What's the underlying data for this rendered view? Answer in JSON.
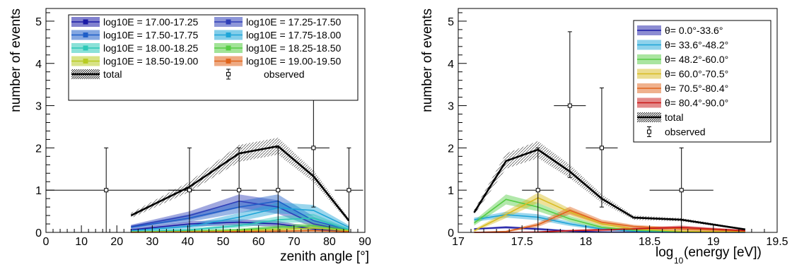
{
  "chart_data": [
    {
      "type": "line",
      "xlabel": "zenith angle [°]",
      "ylabel": "number of events",
      "xlim": [
        0,
        90
      ],
      "ylim": [
        0,
        5.3
      ],
      "xticks": [
        0,
        10,
        20,
        30,
        40,
        50,
        60,
        70,
        80,
        90
      ],
      "yticks": [
        0,
        1,
        2,
        3,
        4,
        5
      ],
      "grid": false,
      "legend_position": "top",
      "x": [
        24,
        40.5,
        54.5,
        65.5,
        75.5,
        85.5
      ],
      "series": [
        {
          "name": "log10E = 17.00-17.25",
          "color": "#1a1aa6",
          "values": [
            0.06,
            0.2,
            0.24,
            0.2,
            0.08,
            0.02
          ],
          "band": [
            0.03,
            0.06,
            0.07,
            0.07,
            0.04,
            0.02
          ]
        },
        {
          "name": "log10E = 17.25-17.50",
          "color": "#2f3fb8",
          "values": [
            0.14,
            0.4,
            0.74,
            0.6,
            0.2,
            0.04
          ],
          "band": [
            0.04,
            0.1,
            0.16,
            0.16,
            0.08,
            0.02
          ]
        },
        {
          "name": "log10E = 17.50-17.75",
          "color": "#1f5fc8",
          "values": [
            0.12,
            0.34,
            0.6,
            0.74,
            0.28,
            0.06
          ],
          "band": [
            0.04,
            0.09,
            0.14,
            0.16,
            0.1,
            0.03
          ]
        },
        {
          "name": "log10E = 17.75-18.00",
          "color": "#1ea5d8",
          "values": [
            0.04,
            0.14,
            0.36,
            0.58,
            0.52,
            0.12
          ],
          "band": [
            0.02,
            0.05,
            0.1,
            0.13,
            0.13,
            0.05
          ]
        },
        {
          "name": "log10E = 18.00-18.25",
          "color": "#2cc8b8",
          "values": [
            0.02,
            0.06,
            0.16,
            0.3,
            0.34,
            0.06
          ],
          "band": [
            0.01,
            0.03,
            0.05,
            0.08,
            0.1,
            0.04
          ]
        },
        {
          "name": "log10E = 18.25-18.50",
          "color": "#55cc44",
          "values": [
            0.01,
            0.03,
            0.06,
            0.12,
            0.16,
            0.05
          ],
          "band": [
            0.01,
            0.02,
            0.03,
            0.05,
            0.06,
            0.03
          ]
        },
        {
          "name": "log10E = 18.50-19.00",
          "color": "#b8cc22",
          "values": [
            0.01,
            0.02,
            0.04,
            0.07,
            0.1,
            0.04
          ],
          "band": [
            0.01,
            0.01,
            0.02,
            0.03,
            0.04,
            0.02
          ]
        },
        {
          "name": "log10E = 19.00-19.50",
          "color": "#e0641c",
          "values": [
            0,
            0.01,
            0.02,
            0.03,
            0.04,
            0.02
          ],
          "band": [
            0.01,
            0.01,
            0.01,
            0.02,
            0.02,
            0.01
          ]
        },
        {
          "name": "total",
          "color": "#000000",
          "values": [
            0.4,
            1.08,
            1.87,
            2.04,
            1.33,
            0.28
          ],
          "band": [
            0.06,
            0.12,
            0.2,
            0.2,
            0.14,
            0.05
          ]
        }
      ],
      "observed": {
        "name": "observed",
        "points": [
          {
            "x": 17,
            "y": 1,
            "xerr": [
              17,
              25
            ],
            "yerr": [
              1,
              1
            ]
          },
          {
            "x": 40.5,
            "y": 1,
            "xerr": [
              6,
              6
            ],
            "yerr": [
              1,
              1
            ]
          },
          {
            "x": 54.5,
            "y": 1,
            "xerr": [
              5,
              5
            ],
            "yerr": [
              1,
              1
            ]
          },
          {
            "x": 65.5,
            "y": 1,
            "xerr": [
              4.5,
              4.5
            ],
            "yerr": [
              1,
              1
            ]
          },
          {
            "x": 75.5,
            "y": 2,
            "xerr": [
              4.5,
              4.5
            ],
            "yerr": [
              1.4,
              1.4
            ]
          },
          {
            "x": 85.5,
            "y": 1,
            "xerr": [
              4,
              4
            ],
            "yerr": [
              1,
              1
            ]
          }
        ]
      }
    },
    {
      "type": "line",
      "xlabel": "log10(energy [eV])",
      "ylabel": "number of events",
      "xlim": [
        17,
        19.5
      ],
      "ylim": [
        0,
        5.3
      ],
      "xticks": [
        17,
        17.5,
        18,
        18.5,
        19,
        19.5
      ],
      "yticks": [
        0,
        1,
        2,
        3,
        4,
        5
      ],
      "grid": false,
      "legend_position": "top-right",
      "x": [
        17.125,
        17.375,
        17.625,
        17.875,
        18.125,
        18.375,
        18.75,
        19.25
      ],
      "series": [
        {
          "name": "θ= 0.0°-33.6°",
          "color": "#1a1aa6",
          "values": [
            0.08,
            0.12,
            0.08,
            0.03,
            0.01,
            0.005,
            0,
            0
          ],
          "band": [
            0.02,
            0.03,
            0.03,
            0.02,
            0.01,
            0.01,
            0,
            0
          ]
        },
        {
          "name": "θ= 33.6°-48.2°",
          "color": "#1ea5d8",
          "values": [
            0.3,
            0.42,
            0.36,
            0.2,
            0.08,
            0.03,
            0.01,
            0
          ],
          "band": [
            0.05,
            0.07,
            0.07,
            0.05,
            0.03,
            0.02,
            0.01,
            0
          ]
        },
        {
          "name": "θ= 48.2°-60.0°",
          "color": "#55cc44",
          "values": [
            0.22,
            0.78,
            0.6,
            0.32,
            0.12,
            0.05,
            0.02,
            0.01
          ],
          "band": [
            0.06,
            0.12,
            0.1,
            0.07,
            0.04,
            0.02,
            0.01,
            0.01
          ]
        },
        {
          "name": "θ= 60.0°-70.5°",
          "color": "#d8bc22",
          "values": [
            0.04,
            0.42,
            0.82,
            0.48,
            0.2,
            0.08,
            0.03,
            0.01
          ],
          "band": [
            0.03,
            0.08,
            0.12,
            0.08,
            0.05,
            0.03,
            0.02,
            0.01
          ]
        },
        {
          "name": "θ= 70.5°-80.4°",
          "color": "#e0641c",
          "values": [
            0,
            0.02,
            0.18,
            0.52,
            0.24,
            0.14,
            0.08,
            0.03
          ],
          "band": [
            0.01,
            0.02,
            0.05,
            0.09,
            0.06,
            0.04,
            0.03,
            0.02
          ]
        },
        {
          "name": "θ= 80.4°-90.0°",
          "color": "#c81414",
          "values": [
            0,
            0,
            0.01,
            0.04,
            0.06,
            0.08,
            0.12,
            0.04
          ],
          "band": [
            0.005,
            0.005,
            0.01,
            0.02,
            0.03,
            0.03,
            0.04,
            0.02
          ]
        },
        {
          "name": "total",
          "color": "#000000",
          "values": [
            0.47,
            1.69,
            1.96,
            1.44,
            0.8,
            0.35,
            0.3,
            0.07
          ],
          "band": [
            0.06,
            0.18,
            0.2,
            0.16,
            0.1,
            0.05,
            0.04,
            0.02
          ]
        }
      ],
      "observed": {
        "name": "observed",
        "points": [
          {
            "x": 17.625,
            "y": 1,
            "xerr": [
              0.125,
              0.125
            ],
            "yerr": [
              1,
              1
            ]
          },
          {
            "x": 17.875,
            "y": 3,
            "xerr": [
              0.125,
              0.125
            ],
            "yerr": [
              1.7,
              1.75
            ]
          },
          {
            "x": 18.125,
            "y": 2,
            "xerr": [
              0.125,
              0.125
            ],
            "yerr": [
              1.4,
              1.42
            ]
          },
          {
            "x": 18.75,
            "y": 1,
            "xerr": [
              0.25,
              0.25
            ],
            "yerr": [
              1,
              1
            ]
          }
        ]
      }
    }
  ]
}
